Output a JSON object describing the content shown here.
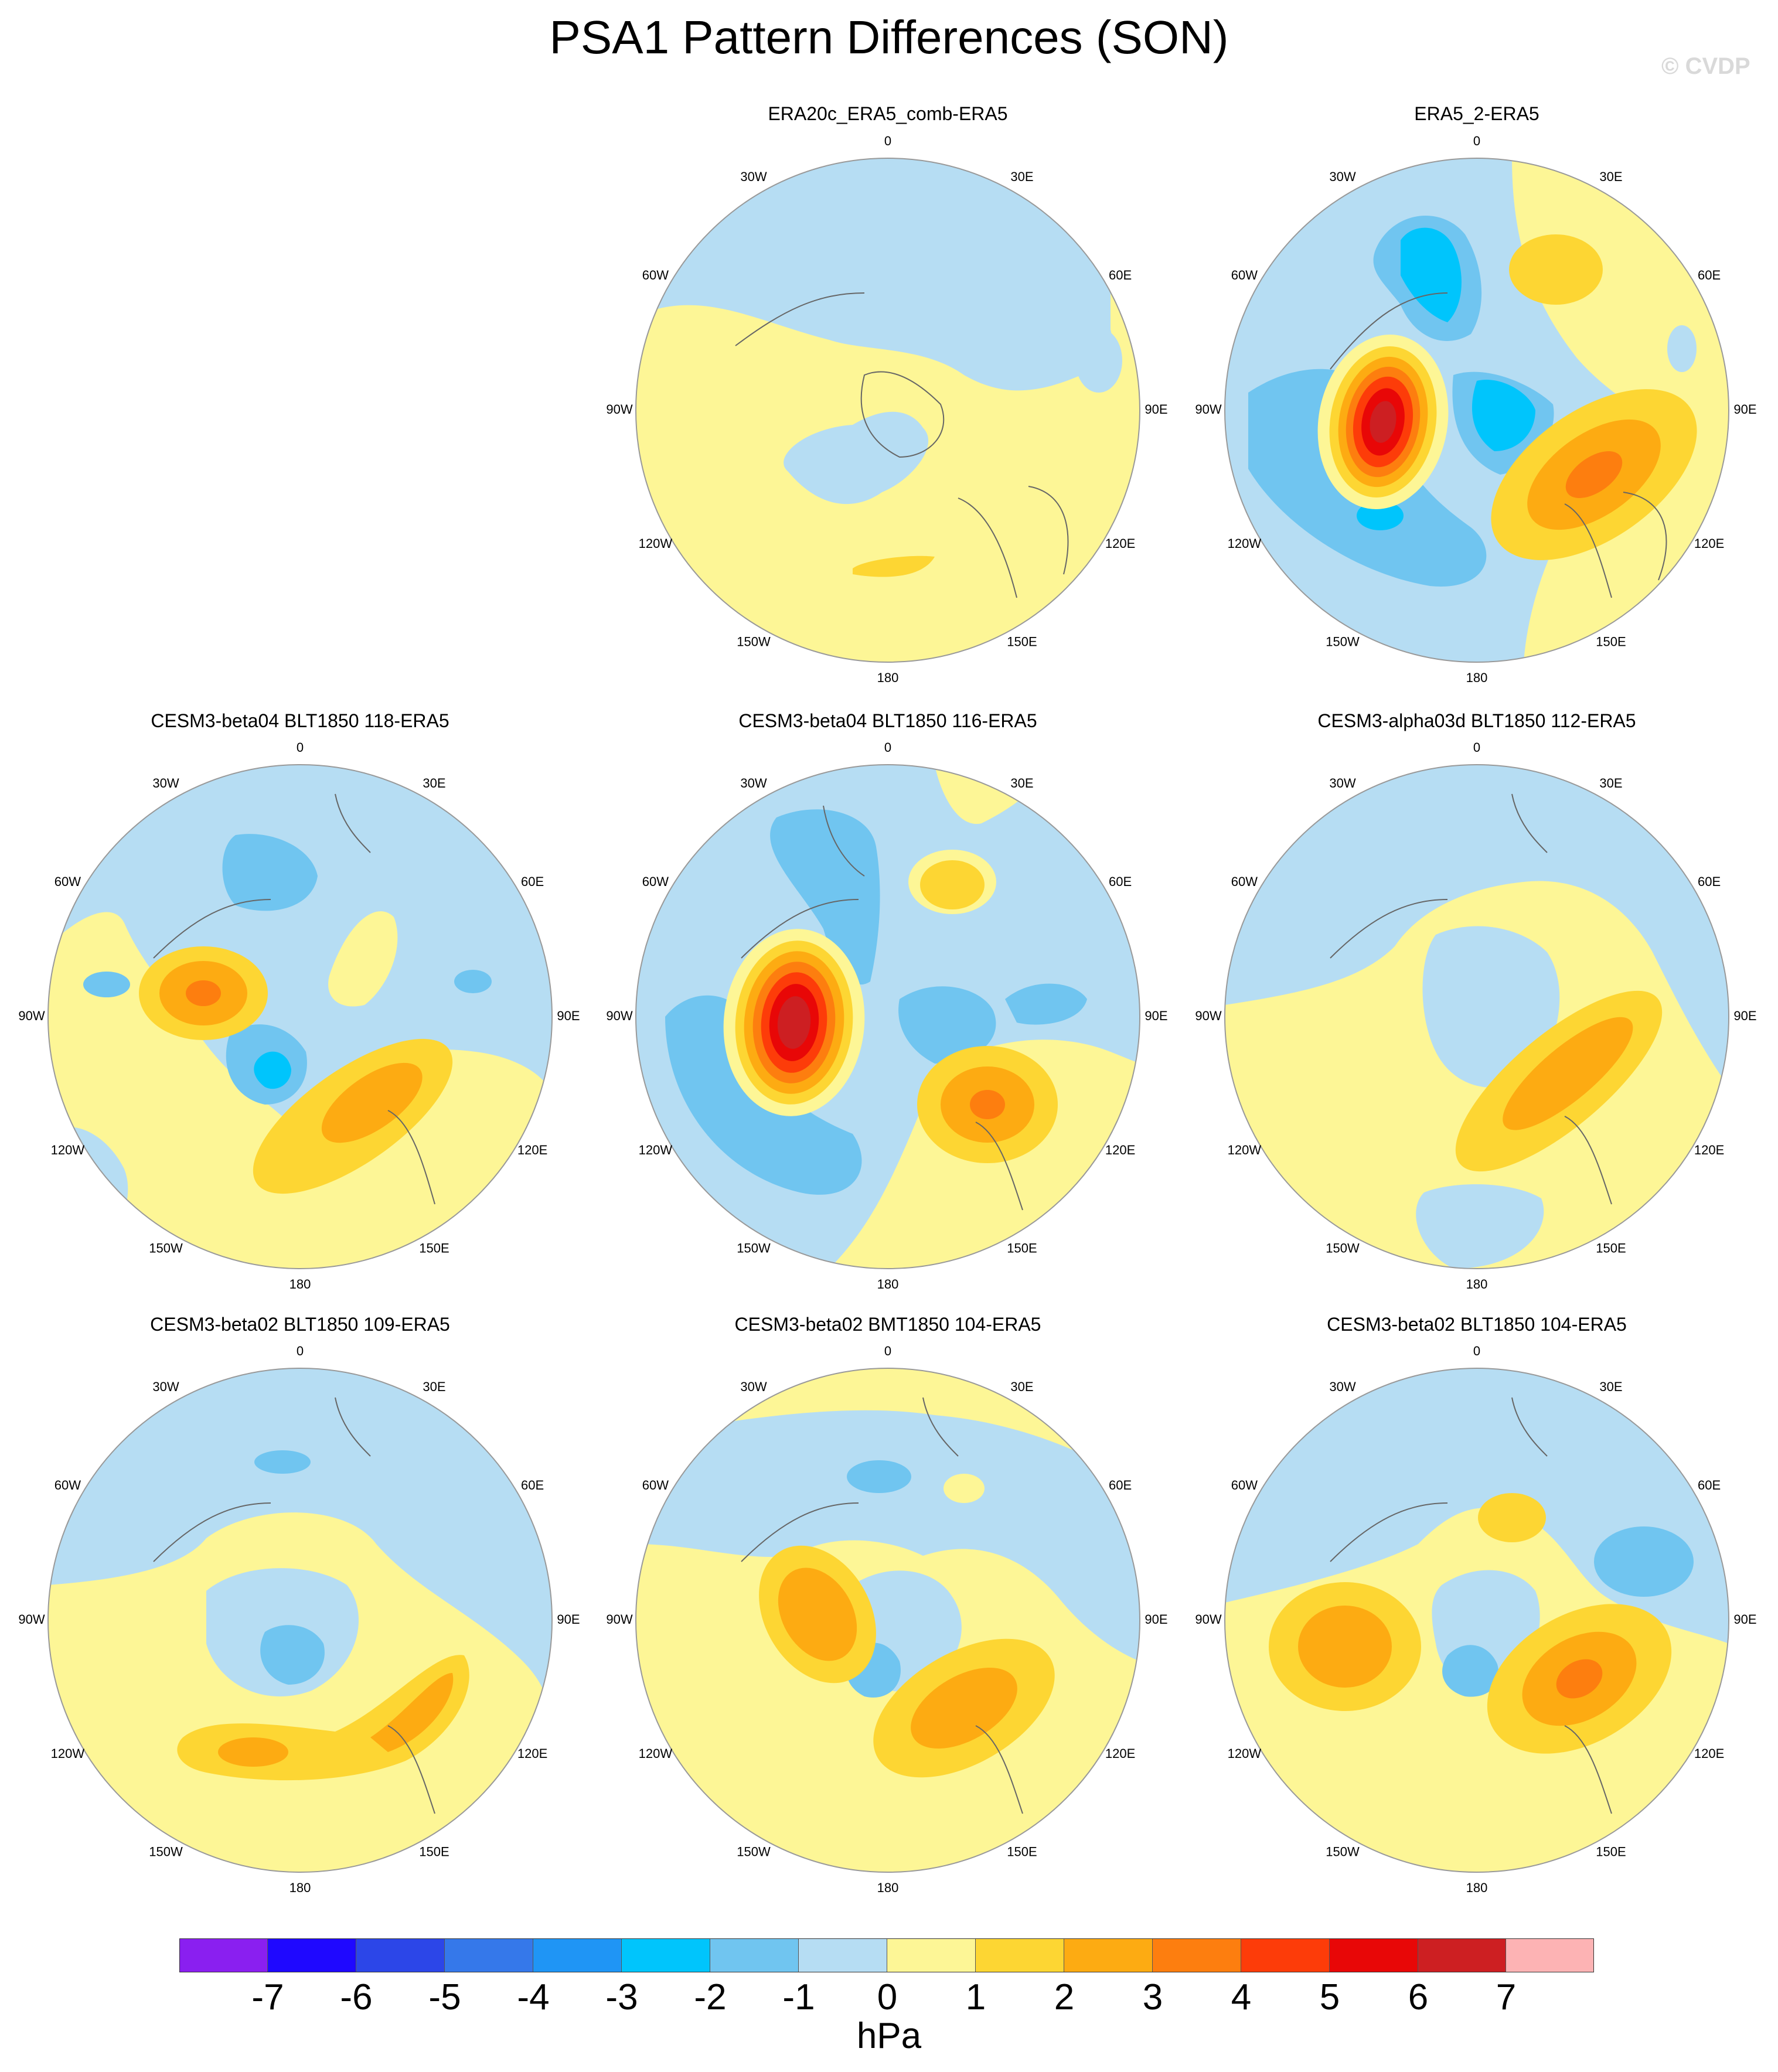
{
  "title": "PSA1 Pattern Differences (SON)",
  "watermark": "© CVDP",
  "colors": {
    "neg7": "#8a1ff0",
    "neg6": "#1f08ff",
    "neg5": "#2c46e8",
    "neg4": "#3578ea",
    "neg3": "#1f95f5",
    "neg2": "#00c5fc",
    "neg1": "#70c5f0",
    "neg0": "#b6ddf3",
    "pos0": "#fdf696",
    "pos1": "#fdd633",
    "pos2": "#fdab12",
    "pos3": "#fd7e0f",
    "pos4": "#fd3c09",
    "pos5": "#e80707",
    "pos6": "#cd1f22",
    "pos7": "#fdb3b4",
    "coast": "#666666",
    "outline": "#999999"
  },
  "longitude_labels": [
    "0",
    "30E",
    "60E",
    "90E",
    "120E",
    "150E",
    "180",
    "150W",
    "120W",
    "90W",
    "60W",
    "30W"
  ],
  "panels": [
    {
      "title": "ERA20c_ERA5_comb-ERA5"
    },
    {
      "title": "ERA5_2-ERA5"
    },
    {
      "title": "CESM3-beta04 BLT1850 118-ERA5"
    },
    {
      "title": "CESM3-beta04 BLT1850 116-ERA5"
    },
    {
      "title": "CESM3-alpha03d BLT1850 112-ERA5"
    },
    {
      "title": "CESM3-beta02 BLT1850 109-ERA5"
    },
    {
      "title": "CESM3-beta02 BMT1850 104-ERA5"
    },
    {
      "title": "CESM3-beta02 BLT1850 104-ERA5"
    }
  ],
  "colorbar": {
    "ticks": [
      "-7",
      "-6",
      "-5",
      "-4",
      "-3",
      "-2",
      "-1",
      "0",
      "1",
      "2",
      "3",
      "4",
      "5",
      "6",
      "7"
    ],
    "unit": "hPa"
  }
}
